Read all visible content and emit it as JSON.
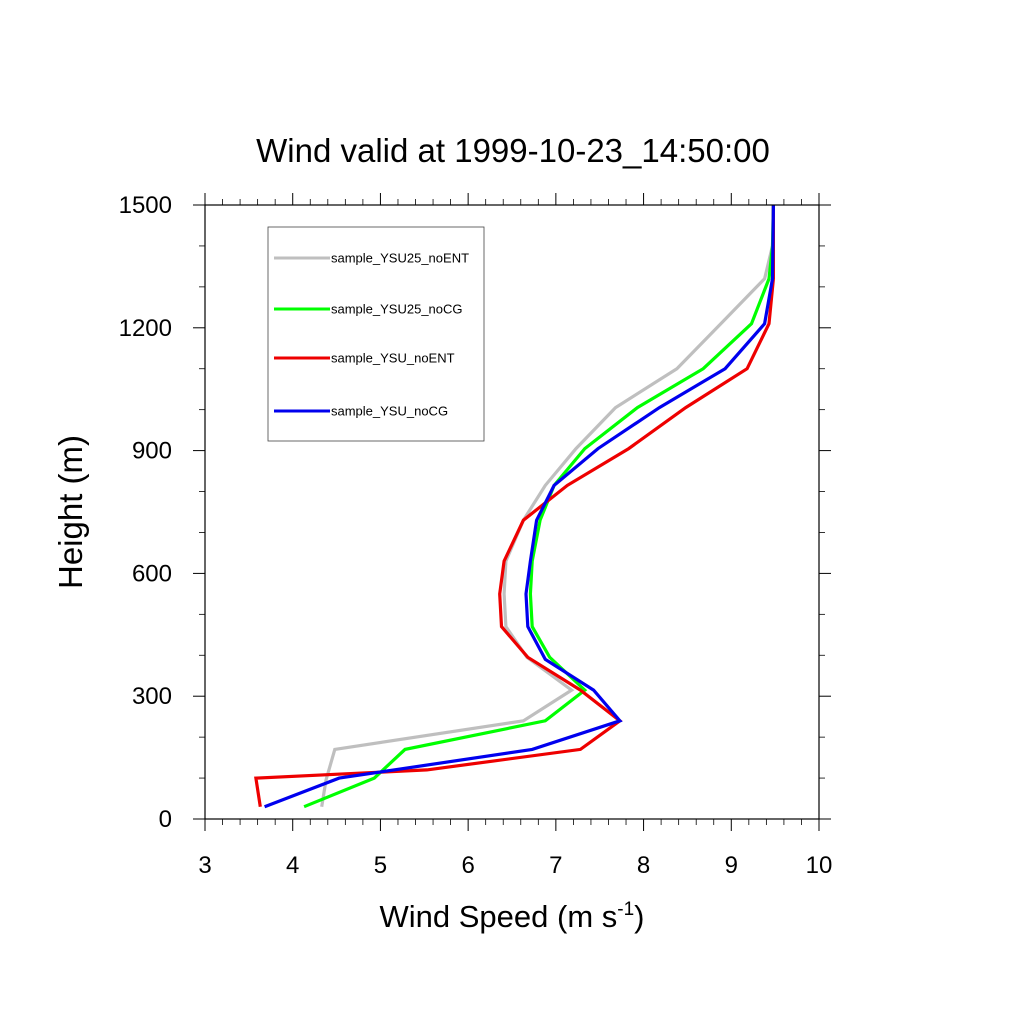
{
  "chart_data": {
    "type": "line",
    "title": "Wind valid at 1999-10-23_14:50:00",
    "xlabel": "Wind Speed (m s",
    "xlabel_sup": "-1",
    "xlabel_close": ")",
    "ylabel": "Height (m)",
    "xlim": [
      3,
      10
    ],
    "ylim": [
      0,
      1500
    ],
    "x_ticks": [
      3,
      4,
      5,
      6,
      7,
      8,
      9,
      10
    ],
    "y_ticks": [
      0,
      300,
      600,
      900,
      1200,
      1500
    ],
    "x_tick_labels": [
      "3",
      "4",
      "5",
      "6",
      "7",
      "8",
      "9",
      "10"
    ],
    "y_tick_labels": [
      "0",
      "300",
      "600",
      "900",
      "1200",
      "1500"
    ],
    "grid": false,
    "legend_position": "top-left",
    "series": [
      {
        "name": "sample_YSU25_noENT",
        "color": "#bfbfbf",
        "x": [
          4.33,
          4.38,
          4.48,
          6.63,
          7.18,
          6.67,
          6.43,
          6.41,
          6.43,
          6.63,
          6.88,
          7.23,
          7.68,
          8.38,
          8.88,
          9.38,
          9.47,
          9.48
        ],
        "y": [
          30,
          95,
          170,
          240,
          315,
          395,
          470,
          550,
          630,
          730,
          815,
          905,
          1005,
          1100,
          1210,
          1320,
          1400,
          1500
        ]
      },
      {
        "name": "sample_YSU25_noCG",
        "color": "#00ff00",
        "x": [
          4.13,
          4.93,
          5.28,
          6.88,
          7.33,
          6.93,
          6.73,
          6.71,
          6.73,
          6.82,
          6.98,
          7.33,
          7.93,
          8.68,
          9.23,
          9.43,
          9.47,
          9.48
        ],
        "y": [
          30,
          100,
          170,
          240,
          315,
          395,
          470,
          550,
          630,
          730,
          815,
          905,
          1005,
          1100,
          1210,
          1320,
          1400,
          1500
        ]
      },
      {
        "name": "sample_YSU_noENT",
        "color": "#ee0000",
        "x": [
          3.63,
          3.58,
          5.53,
          7.28,
          7.73,
          7.28,
          6.68,
          6.38,
          6.36,
          6.41,
          6.63,
          7.13,
          7.83,
          8.48,
          9.18,
          9.43,
          9.48,
          9.48
        ],
        "y": [
          30,
          100,
          120,
          170,
          240,
          315,
          395,
          470,
          550,
          630,
          730,
          815,
          905,
          1005,
          1100,
          1210,
          1320,
          1500
        ]
      },
      {
        "name": "sample_YSU_noCG",
        "color": "#0000ee",
        "x": [
          3.68,
          4.53,
          6.73,
          7.73,
          7.43,
          6.88,
          6.68,
          6.66,
          6.71,
          6.78,
          6.98,
          7.48,
          8.18,
          8.93,
          9.38,
          9.47,
          9.48
        ],
        "y": [
          30,
          100,
          170,
          240,
          315,
          390,
          470,
          550,
          630,
          730,
          815,
          905,
          1005,
          1100,
          1210,
          1320,
          1500
        ]
      }
    ]
  }
}
